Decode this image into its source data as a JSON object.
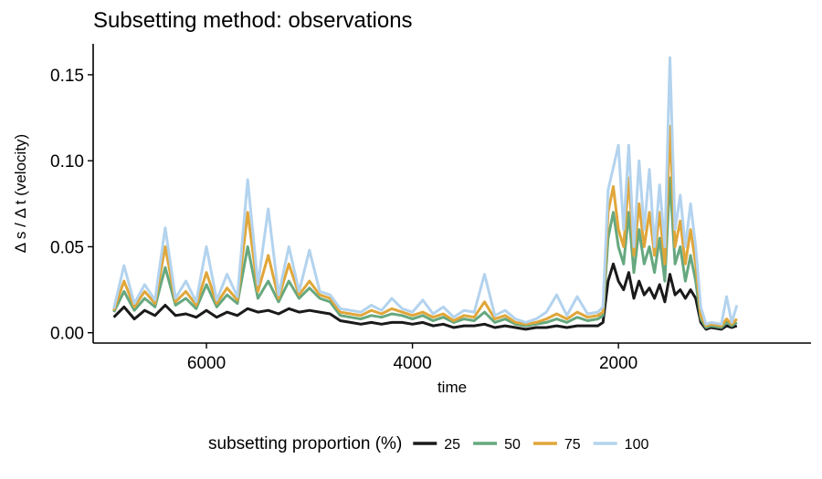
{
  "chart_data": {
    "type": "line",
    "title": "Subsetting method: observations",
    "xlabel": "time",
    "ylabel": "Δ s / Δ t  (velocity)",
    "x_reversed": true,
    "xlim": [
      7100,
      130
    ],
    "ylim": [
      -0.006,
      0.168
    ],
    "x_ticks": [
      6000,
      4000,
      2000
    ],
    "x_tick_labels": [
      "6000",
      "4000",
      "2000"
    ],
    "y_ticks": [
      0.0,
      0.05,
      0.1,
      0.15
    ],
    "y_tick_labels": [
      "0.00",
      "0.05",
      "0.10",
      "0.15"
    ],
    "grid": false,
    "legend": {
      "title": "subsetting proportion (%)",
      "position": "bottom"
    },
    "series": [
      {
        "name": "25",
        "color": "#1a1a1a",
        "x": [
          6900,
          6800,
          6700,
          6600,
          6500,
          6400,
          6300,
          6200,
          6100,
          6000,
          5900,
          5800,
          5700,
          5600,
          5500,
          5400,
          5300,
          5200,
          5100,
          5000,
          4900,
          4800,
          4700,
          4600,
          4500,
          4400,
          4300,
          4200,
          4100,
          4000,
          3900,
          3800,
          3700,
          3600,
          3500,
          3400,
          3300,
          3200,
          3100,
          3000,
          2900,
          2800,
          2700,
          2600,
          2500,
          2400,
          2300,
          2200,
          2150,
          2100,
          2050,
          2000,
          1950,
          1900,
          1850,
          1800,
          1750,
          1700,
          1650,
          1600,
          1550,
          1500,
          1450,
          1400,
          1350,
          1300,
          1250,
          1200,
          1150,
          1100,
          1000,
          950,
          900,
          850
        ],
        "y": [
          0.009,
          0.015,
          0.008,
          0.013,
          0.01,
          0.016,
          0.01,
          0.011,
          0.009,
          0.013,
          0.009,
          0.012,
          0.01,
          0.014,
          0.012,
          0.013,
          0.011,
          0.014,
          0.012,
          0.013,
          0.012,
          0.011,
          0.007,
          0.006,
          0.005,
          0.006,
          0.005,
          0.006,
          0.006,
          0.005,
          0.006,
          0.004,
          0.005,
          0.003,
          0.004,
          0.004,
          0.005,
          0.003,
          0.004,
          0.003,
          0.002,
          0.003,
          0.003,
          0.004,
          0.003,
          0.004,
          0.004,
          0.004,
          0.006,
          0.03,
          0.04,
          0.03,
          0.025,
          0.035,
          0.02,
          0.03,
          0.022,
          0.026,
          0.02,
          0.028,
          0.018,
          0.034,
          0.022,
          0.025,
          0.02,
          0.025,
          0.02,
          0.006,
          0.002,
          0.003,
          0.002,
          0.004,
          0.003,
          0.004
        ]
      },
      {
        "name": "50",
        "color": "#66a87f",
        "x": [
          6900,
          6800,
          6700,
          6600,
          6500,
          6400,
          6300,
          6200,
          6100,
          6000,
          5900,
          5800,
          5700,
          5600,
          5500,
          5400,
          5300,
          5200,
          5100,
          5000,
          4900,
          4800,
          4700,
          4600,
          4500,
          4400,
          4300,
          4200,
          4100,
          4000,
          3900,
          3800,
          3700,
          3600,
          3500,
          3400,
          3300,
          3200,
          3100,
          3000,
          2900,
          2800,
          2700,
          2600,
          2500,
          2400,
          2300,
          2200,
          2150,
          2100,
          2050,
          2000,
          1950,
          1900,
          1850,
          1800,
          1750,
          1700,
          1650,
          1600,
          1550,
          1500,
          1450,
          1400,
          1350,
          1300,
          1250,
          1200,
          1150,
          1100,
          1000,
          950,
          900,
          850
        ],
        "y": [
          0.012,
          0.024,
          0.013,
          0.02,
          0.015,
          0.038,
          0.016,
          0.02,
          0.014,
          0.028,
          0.015,
          0.022,
          0.017,
          0.05,
          0.02,
          0.03,
          0.018,
          0.03,
          0.02,
          0.026,
          0.02,
          0.018,
          0.01,
          0.009,
          0.008,
          0.01,
          0.009,
          0.011,
          0.01,
          0.008,
          0.01,
          0.007,
          0.009,
          0.006,
          0.008,
          0.007,
          0.012,
          0.006,
          0.008,
          0.005,
          0.004,
          0.005,
          0.006,
          0.008,
          0.006,
          0.009,
          0.007,
          0.008,
          0.01,
          0.055,
          0.07,
          0.05,
          0.04,
          0.07,
          0.035,
          0.06,
          0.04,
          0.05,
          0.035,
          0.055,
          0.03,
          0.09,
          0.04,
          0.05,
          0.03,
          0.045,
          0.03,
          0.008,
          0.003,
          0.004,
          0.003,
          0.006,
          0.004,
          0.006
        ]
      },
      {
        "name": "75",
        "color": "#e0a639",
        "x": [
          6900,
          6800,
          6700,
          6600,
          6500,
          6400,
          6300,
          6200,
          6100,
          6000,
          5900,
          5800,
          5700,
          5600,
          5500,
          5400,
          5300,
          5200,
          5100,
          5000,
          4900,
          4800,
          4700,
          4600,
          4500,
          4400,
          4300,
          4200,
          4100,
          4000,
          3900,
          3800,
          3700,
          3600,
          3500,
          3400,
          3300,
          3200,
          3100,
          3000,
          2900,
          2800,
          2700,
          2600,
          2500,
          2400,
          2300,
          2200,
          2150,
          2100,
          2050,
          2000,
          1950,
          1900,
          1850,
          1800,
          1750,
          1700,
          1650,
          1600,
          1550,
          1500,
          1450,
          1400,
          1350,
          1300,
          1250,
          1200,
          1150,
          1100,
          1000,
          950,
          900,
          850
        ],
        "y": [
          0.013,
          0.03,
          0.015,
          0.024,
          0.017,
          0.05,
          0.018,
          0.024,
          0.016,
          0.035,
          0.017,
          0.026,
          0.019,
          0.07,
          0.024,
          0.045,
          0.02,
          0.04,
          0.022,
          0.03,
          0.022,
          0.02,
          0.012,
          0.011,
          0.01,
          0.013,
          0.011,
          0.014,
          0.012,
          0.01,
          0.012,
          0.009,
          0.011,
          0.007,
          0.01,
          0.009,
          0.018,
          0.008,
          0.01,
          0.006,
          0.005,
          0.006,
          0.008,
          0.011,
          0.008,
          0.012,
          0.009,
          0.01,
          0.012,
          0.07,
          0.085,
          0.06,
          0.05,
          0.09,
          0.045,
          0.075,
          0.05,
          0.07,
          0.045,
          0.07,
          0.04,
          0.12,
          0.05,
          0.065,
          0.04,
          0.06,
          0.04,
          0.01,
          0.004,
          0.005,
          0.004,
          0.008,
          0.005,
          0.008
        ]
      },
      {
        "name": "100",
        "color": "#b3d3ee",
        "x": [
          6900,
          6800,
          6700,
          6600,
          6500,
          6400,
          6300,
          6200,
          6100,
          6000,
          5900,
          5800,
          5700,
          5600,
          5500,
          5400,
          5300,
          5200,
          5100,
          5000,
          4900,
          4800,
          4700,
          4600,
          4500,
          4400,
          4300,
          4200,
          4100,
          4000,
          3900,
          3800,
          3700,
          3600,
          3500,
          3400,
          3300,
          3200,
          3100,
          3000,
          2900,
          2800,
          2700,
          2600,
          2500,
          2400,
          2300,
          2200,
          2150,
          2100,
          2050,
          2000,
          1950,
          1900,
          1850,
          1800,
          1750,
          1700,
          1650,
          1600,
          1550,
          1500,
          1450,
          1400,
          1350,
          1300,
          1250,
          1200,
          1150,
          1100,
          1000,
          950,
          900,
          850
        ],
        "y": [
          0.014,
          0.039,
          0.017,
          0.028,
          0.019,
          0.061,
          0.02,
          0.03,
          0.018,
          0.05,
          0.019,
          0.034,
          0.021,
          0.089,
          0.028,
          0.072,
          0.022,
          0.05,
          0.024,
          0.048,
          0.024,
          0.022,
          0.014,
          0.013,
          0.012,
          0.016,
          0.013,
          0.02,
          0.014,
          0.012,
          0.019,
          0.011,
          0.015,
          0.009,
          0.013,
          0.012,
          0.034,
          0.01,
          0.013,
          0.008,
          0.006,
          0.008,
          0.012,
          0.022,
          0.01,
          0.021,
          0.011,
          0.012,
          0.015,
          0.083,
          0.096,
          0.109,
          0.06,
          0.109,
          0.05,
          0.1,
          0.06,
          0.095,
          0.05,
          0.086,
          0.05,
          0.16,
          0.06,
          0.08,
          0.05,
          0.075,
          0.05,
          0.015,
          0.005,
          0.006,
          0.005,
          0.021,
          0.006,
          0.016
        ]
      }
    ]
  }
}
